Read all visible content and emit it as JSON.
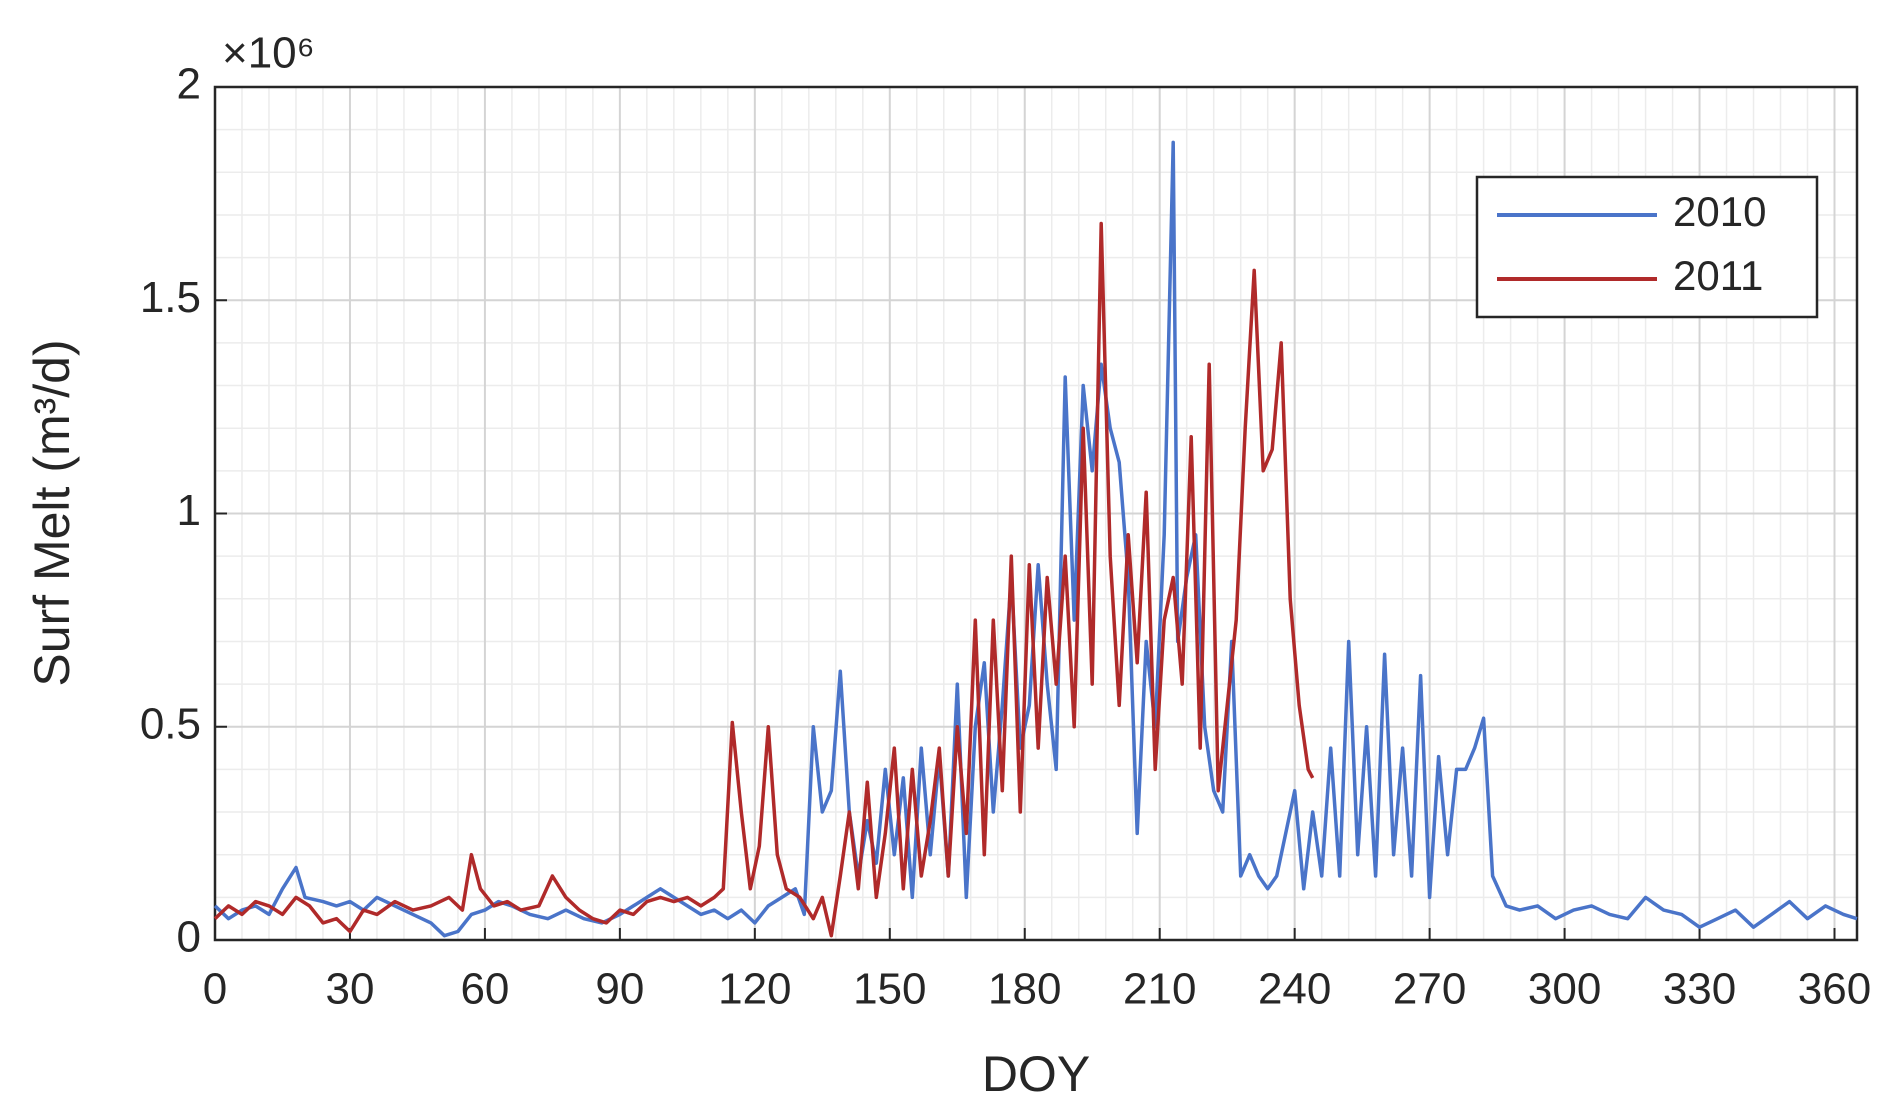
{
  "chart_data": {
    "type": "line",
    "x_label": "DOY",
    "y_label": "Surf Melt (m³/d)",
    "y_multiplier": "×10⁶",
    "xlim": [
      0,
      365
    ],
    "ylim": [
      0,
      2
    ],
    "xticks": [
      0,
      30,
      60,
      90,
      120,
      150,
      180,
      210,
      240,
      270,
      300,
      330,
      360
    ],
    "yticks": [
      0,
      0.5,
      1,
      1.5,
      2
    ],
    "grid": true,
    "minor_grid": true,
    "legend": "northeast",
    "series": [
      {
        "name": "2010",
        "color": "#4a74c9",
        "x": [
          0,
          3,
          6,
          9,
          12,
          15,
          18,
          20,
          24,
          27,
          30,
          33,
          36,
          40,
          44,
          48,
          51,
          54,
          57,
          60,
          63,
          66,
          70,
          74,
          78,
          82,
          86,
          90,
          93,
          96,
          99,
          102,
          105,
          108,
          111,
          114,
          117,
          120,
          123,
          126,
          129,
          131,
          133,
          135,
          137,
          139,
          141,
          143,
          145,
          147,
          149,
          151,
          153,
          155,
          157,
          159,
          161,
          163,
          165,
          167,
          169,
          171,
          173,
          175,
          177,
          179,
          181,
          183,
          185,
          187,
          189,
          191,
          193,
          195,
          197,
          199,
          201,
          203,
          205,
          207,
          209,
          211,
          213,
          214,
          216,
          218,
          220,
          222,
          224,
          226,
          228,
          230,
          232,
          234,
          236,
          238,
          240,
          242,
          244,
          246,
          248,
          250,
          252,
          254,
          256,
          258,
          260,
          262,
          264,
          266,
          268,
          270,
          272,
          274,
          276,
          278,
          280,
          282,
          284,
          287,
          290,
          294,
          298,
          302,
          306,
          310,
          314,
          318,
          322,
          326,
          330,
          334,
          338,
          342,
          346,
          350,
          354,
          358,
          362,
          365
        ],
        "values": [
          0.08,
          0.05,
          0.07,
          0.08,
          0.06,
          0.12,
          0.17,
          0.1,
          0.09,
          0.08,
          0.09,
          0.07,
          0.1,
          0.08,
          0.06,
          0.04,
          0.01,
          0.02,
          0.06,
          0.07,
          0.09,
          0.08,
          0.06,
          0.05,
          0.07,
          0.05,
          0.04,
          0.06,
          0.08,
          0.1,
          0.12,
          0.1,
          0.08,
          0.06,
          0.07,
          0.05,
          0.07,
          0.04,
          0.08,
          0.1,
          0.12,
          0.06,
          0.5,
          0.3,
          0.35,
          0.63,
          0.3,
          0.15,
          0.28,
          0.18,
          0.4,
          0.2,
          0.38,
          0.1,
          0.45,
          0.2,
          0.43,
          0.15,
          0.6,
          0.1,
          0.5,
          0.65,
          0.3,
          0.55,
          0.85,
          0.45,
          0.55,
          0.88,
          0.6,
          0.4,
          1.32,
          0.75,
          1.3,
          1.1,
          1.35,
          1.2,
          1.12,
          0.85,
          0.25,
          0.7,
          0.5,
          0.95,
          1.87,
          0.7,
          0.85,
          0.95,
          0.5,
          0.35,
          0.3,
          0.7,
          0.15,
          0.2,
          0.15,
          0.12,
          0.15,
          0.25,
          0.35,
          0.12,
          0.3,
          0.15,
          0.45,
          0.15,
          0.7,
          0.2,
          0.5,
          0.15,
          0.67,
          0.2,
          0.45,
          0.15,
          0.62,
          0.1,
          0.43,
          0.2,
          0.4,
          0.4,
          0.45,
          0.52,
          0.15,
          0.08,
          0.07,
          0.08,
          0.05,
          0.07,
          0.08,
          0.06,
          0.05,
          0.1,
          0.07,
          0.06,
          0.03,
          0.05,
          0.07,
          0.03,
          0.06,
          0.09,
          0.05,
          0.08,
          0.06,
          0.05
        ]
      },
      {
        "name": "2011",
        "color": "#b02a2a",
        "x": [
          0,
          3,
          6,
          9,
          12,
          15,
          18,
          21,
          24,
          27,
          30,
          33,
          36,
          40,
          44,
          48,
          52,
          55,
          57,
          59,
          62,
          65,
          68,
          72,
          75,
          78,
          81,
          84,
          87,
          90,
          93,
          96,
          99,
          102,
          105,
          108,
          111,
          113,
          115,
          117,
          119,
          121,
          123,
          125,
          127,
          130,
          133,
          135,
          137,
          139,
          141,
          143,
          145,
          147,
          149,
          151,
          153,
          155,
          157,
          159,
          161,
          163,
          165,
          167,
          169,
          171,
          173,
          175,
          177,
          179,
          181,
          183,
          185,
          187,
          189,
          191,
          193,
          195,
          197,
          199,
          201,
          203,
          205,
          207,
          209,
          211,
          213,
          215,
          217,
          219,
          221,
          223,
          225,
          227,
          229,
          231,
          233,
          235,
          237,
          239,
          241,
          243,
          244
        ],
        "values": [
          0.05,
          0.08,
          0.06,
          0.09,
          0.08,
          0.06,
          0.1,
          0.08,
          0.04,
          0.05,
          0.02,
          0.07,
          0.06,
          0.09,
          0.07,
          0.08,
          0.1,
          0.07,
          0.2,
          0.12,
          0.08,
          0.09,
          0.07,
          0.08,
          0.15,
          0.1,
          0.07,
          0.05,
          0.04,
          0.07,
          0.06,
          0.09,
          0.1,
          0.09,
          0.1,
          0.08,
          0.1,
          0.12,
          0.51,
          0.3,
          0.12,
          0.22,
          0.5,
          0.2,
          0.12,
          0.1,
          0.05,
          0.1,
          0.01,
          0.15,
          0.3,
          0.12,
          0.37,
          0.1,
          0.25,
          0.45,
          0.12,
          0.4,
          0.15,
          0.28,
          0.45,
          0.15,
          0.5,
          0.25,
          0.75,
          0.2,
          0.75,
          0.35,
          0.9,
          0.3,
          0.88,
          0.45,
          0.85,
          0.6,
          0.9,
          0.5,
          1.2,
          0.6,
          1.68,
          0.9,
          0.55,
          0.95,
          0.65,
          1.05,
          0.4,
          0.75,
          0.85,
          0.6,
          1.18,
          0.45,
          1.35,
          0.35,
          0.55,
          0.75,
          1.2,
          1.57,
          1.1,
          1.15,
          1.4,
          0.8,
          0.55,
          0.4,
          0.38
        ]
      }
    ]
  }
}
